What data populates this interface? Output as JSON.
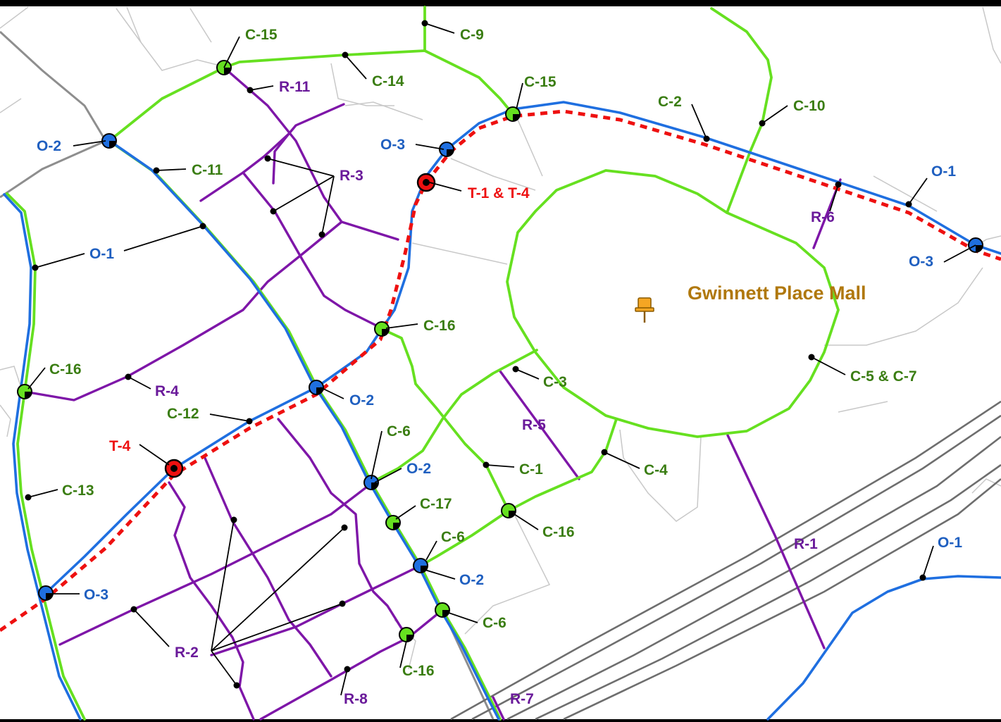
{
  "map": {
    "place_label": "Gwinnett Place Mall",
    "pin_icon": "pushpin-icon",
    "colors": {
      "overlay_route": "#1f6fe0",
      "connector_route": "#66e020",
      "residential_route": "#7e16a8",
      "trail_route": "#ee1010",
      "place_label": "#b0780c",
      "base_road": "#c8c8c8",
      "highway": "#6e6e6e"
    }
  },
  "labels": {
    "c15a": "C-15",
    "c9": "C-9",
    "c14": "C-14",
    "r11": "R-11",
    "c15b": "C-15",
    "c2": "C-2",
    "c10": "C-10",
    "o2a": "O-2",
    "c11": "C-11",
    "r3": "R-3",
    "o3a": "O-3",
    "t14": "T-1 & T-4",
    "o1a": "O-1",
    "r6": "R-6",
    "o3b": "O-3",
    "o1b": "O-1",
    "c16a": "C-16",
    "c16b": "C-16",
    "r4": "R-4",
    "c57": "C-5 & C-7",
    "c3": "C-3",
    "o2b": "O-2",
    "c12": "C-12",
    "r5": "R-5",
    "t4": "T-4",
    "c6a": "C-6",
    "o2c": "O-2",
    "c1": "C-1",
    "c4": "C-4",
    "c13": "C-13",
    "c17": "C-17",
    "c16c": "C-16",
    "c6b": "C-6",
    "r1": "R-1",
    "o1c": "O-1",
    "o2d": "O-2",
    "o3c": "O-3",
    "c6c": "C-6",
    "r2": "R-2",
    "c16d": "C-16",
    "r8": "R-8",
    "r7": "R-7"
  }
}
